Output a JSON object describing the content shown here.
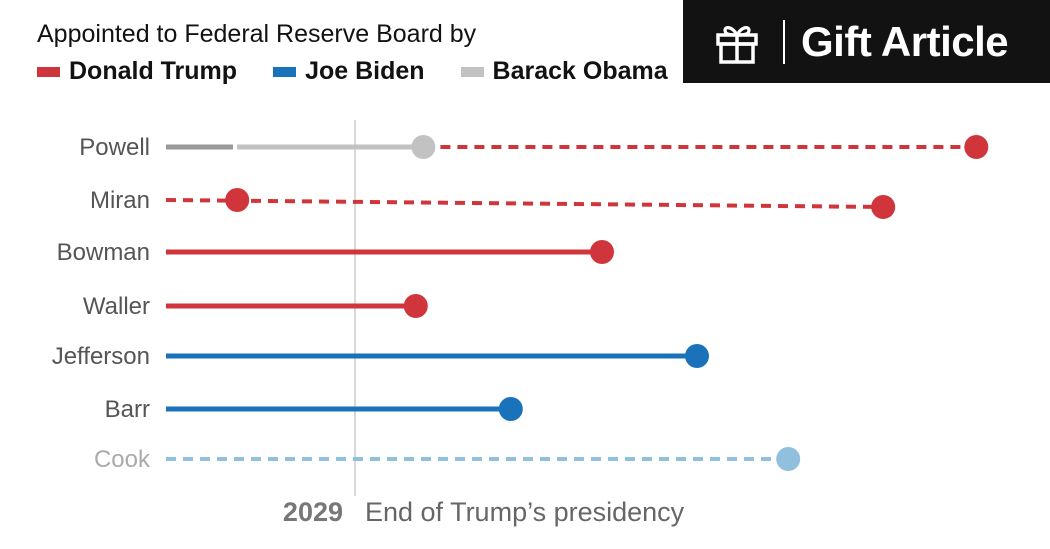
{
  "legend": {
    "title": "Appointed to Federal Reserve Board by",
    "items": [
      {
        "label": "Donald Trump",
        "color": "#d0353b"
      },
      {
        "label": "Joe Biden",
        "color": "#1a72bb"
      },
      {
        "label": "Barack Obama",
        "color": "#c2c2c2"
      }
    ]
  },
  "gift": {
    "label": "Gift Article",
    "icon": "gift-icon"
  },
  "chart_data": {
    "type": "dumbbell",
    "title": "",
    "xlabel": "",
    "ylabel": "",
    "reference_line": {
      "year": "2029",
      "label": "End of Trump’s presidency"
    },
    "governors": [
      {
        "name": "Powell",
        "appointed_by": "Donald Trump",
        "term_start": 0.36,
        "term_end": 3.27,
        "style": "dashed",
        "prior_obama_segment": true
      },
      {
        "name": "Miran",
        "appointed_by": "Donald Trump",
        "term_start": -0.62,
        "term_end": 2.78,
        "style": "dashed"
      },
      {
        "name": "Bowman",
        "appointed_by": "Donald Trump",
        "term_start": null,
        "term_end": 1.3,
        "style": "solid"
      },
      {
        "name": "Waller",
        "appointed_by": "Donald Trump",
        "term_start": null,
        "term_end": 0.32,
        "style": "solid"
      },
      {
        "name": "Jefferson",
        "appointed_by": "Joe Biden",
        "term_start": null,
        "term_end": 1.8,
        "style": "solid"
      },
      {
        "name": "Barr",
        "appointed_by": "Joe Biden",
        "term_start": null,
        "term_end": 0.82,
        "style": "solid"
      },
      {
        "name": "Cook",
        "appointed_by": "Joe Biden",
        "term_start": null,
        "term_end": 2.28,
        "style": "dashed",
        "muted": true
      }
    ]
  }
}
